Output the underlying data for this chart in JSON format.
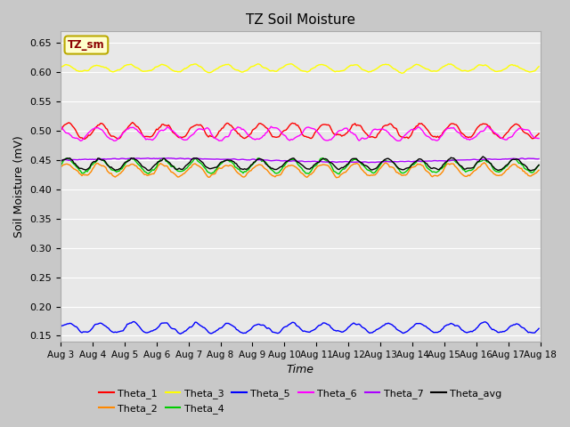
{
  "title": "TZ Soil Moisture",
  "xlabel": "Time",
  "ylabel": "Soil Moisture (mV)",
  "ylim": [
    0.14,
    0.67
  ],
  "xlim": [
    0,
    360
  ],
  "yticks": [
    0.15,
    0.2,
    0.25,
    0.3,
    0.35,
    0.4,
    0.45,
    0.5,
    0.55,
    0.6,
    0.65
  ],
  "fig_facecolor": "#c8c8c8",
  "ax_facecolor": "#e8e8e8",
  "legend_title": "TZ_sm",
  "series_order": [
    "Theta_1",
    "Theta_2",
    "Theta_3",
    "Theta_4",
    "Theta_5",
    "Theta_6",
    "Theta_7",
    "Theta_avg"
  ],
  "series": {
    "Theta_1": {
      "color": "#ff0000",
      "base": 0.5,
      "amp": 0.012,
      "freq": 1.0,
      "phase": 0.0,
      "trend": 0.0
    },
    "Theta_2": {
      "color": "#ff8800",
      "base": 0.433,
      "amp": 0.01,
      "freq": 1.0,
      "phase": 0.3,
      "trend": 0.0
    },
    "Theta_3": {
      "color": "#ffff00",
      "base": 0.607,
      "amp": 0.006,
      "freq": 1.0,
      "phase": 0.5,
      "trend": 0.0
    },
    "Theta_4": {
      "color": "#00cc00",
      "base": 0.44,
      "amp": 0.011,
      "freq": 1.0,
      "phase": 0.2,
      "trend": 0.0
    },
    "Theta_5": {
      "color": "#0000ff",
      "base": 0.163,
      "amp": 0.008,
      "freq": 1.0,
      "phase": 0.1,
      "trend": 0.0
    },
    "Theta_6": {
      "color": "#ff00ff",
      "base": 0.495,
      "amp": 0.01,
      "freq": 0.9,
      "phase": 1.57,
      "trend": 0.0
    },
    "Theta_7": {
      "color": "#aa00ff",
      "base": 0.45,
      "amp": 0.003,
      "freq": 0.08,
      "phase": 0.0,
      "trend": 0.0
    },
    "Theta_avg": {
      "color": "#000000",
      "base": 0.443,
      "amp": 0.009,
      "freq": 1.0,
      "phase": 0.15,
      "trend": 0.0
    }
  },
  "n_days": 15,
  "points_per_day": 24,
  "xtick_labels": [
    "Aug 3",
    "Aug 4",
    "Aug 5",
    "Aug 6",
    "Aug 7",
    "Aug 8",
    "Aug 9",
    "Aug 10",
    "Aug 11",
    "Aug 12",
    "Aug 13",
    "Aug 14",
    "Aug 15",
    "Aug 16",
    "Aug 17",
    "Aug 18"
  ],
  "xtick_positions": [
    0,
    24,
    48,
    72,
    96,
    120,
    144,
    168,
    192,
    216,
    240,
    264,
    288,
    312,
    336,
    360
  ]
}
